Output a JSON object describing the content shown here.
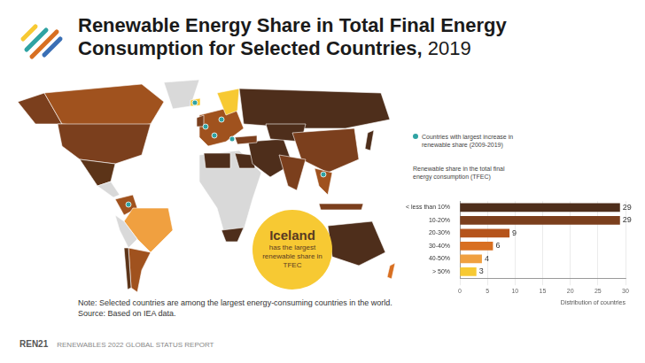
{
  "header": {
    "title": "Renewable Energy Share in Total Final Energy Consumption for Selected Countries,",
    "year": "2019"
  },
  "callout": {
    "country": "Iceland",
    "text": "has the largest renewable share in TFEC"
  },
  "map_legend": "Countries with largest increase in renewable share (2009-2019)",
  "chart_data": {
    "type": "bar",
    "orientation": "horizontal",
    "title": "Renewable share in the total final energy consumption (TFEC)",
    "x_label": "Distribution of countries",
    "categories": [
      "< less than 10%",
      "10-20%",
      "20-30%",
      "30-40%",
      "40-50%",
      "> 50%"
    ],
    "values": [
      29,
      29,
      9,
      6,
      4,
      3
    ],
    "colors": [
      "#4e2e1b",
      "#7b3f1d",
      "#b5541c",
      "#d86f21",
      "#f0a040",
      "#f7c933"
    ],
    "xlim": [
      0,
      30
    ],
    "xticks": [
      0,
      5,
      10,
      15,
      20,
      25,
      30
    ],
    "grid": true,
    "data_labels": true
  },
  "note": "Note: Selected countries are among the largest energy-consuming countries in the world.",
  "source": "Source: Based on IEA data.",
  "footer": {
    "organization": "REN21",
    "report": "RENEWABLES 2022 GLOBAL STATUS REPORT"
  }
}
